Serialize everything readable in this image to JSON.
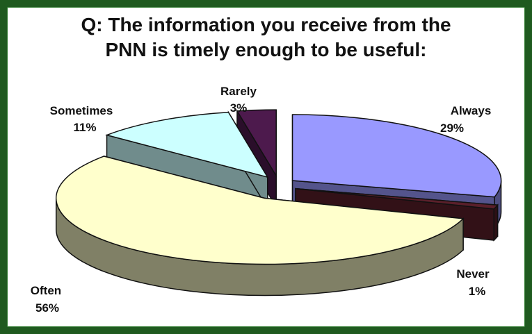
{
  "colors": {
    "always": "#9999ff",
    "never": "#5a1f2a",
    "often": "#ffffcc",
    "sometimes": "#ccffff",
    "rarely": "#4d1a4d",
    "border": "#1f5a1f"
  },
  "chart_data": {
    "type": "pie",
    "title_line1": "Q: The information you receive from the",
    "title_line2": "PNN is timely enough to be useful:",
    "slices": [
      {
        "name": "Always",
        "value": 29,
        "label": "Always",
        "pct_label": "29%"
      },
      {
        "name": "Never",
        "value": 1,
        "label": "Never",
        "pct_label": "1%"
      },
      {
        "name": "Often",
        "value": 56,
        "label": "Often",
        "pct_label": "56%"
      },
      {
        "name": "Sometimes",
        "value": 11,
        "label": "Sometimes",
        "pct_label": "11%"
      },
      {
        "name": "Rarely",
        "value": 3,
        "label": "Rarely",
        "pct_label": "3%"
      }
    ],
    "style": "3d-exploded"
  }
}
